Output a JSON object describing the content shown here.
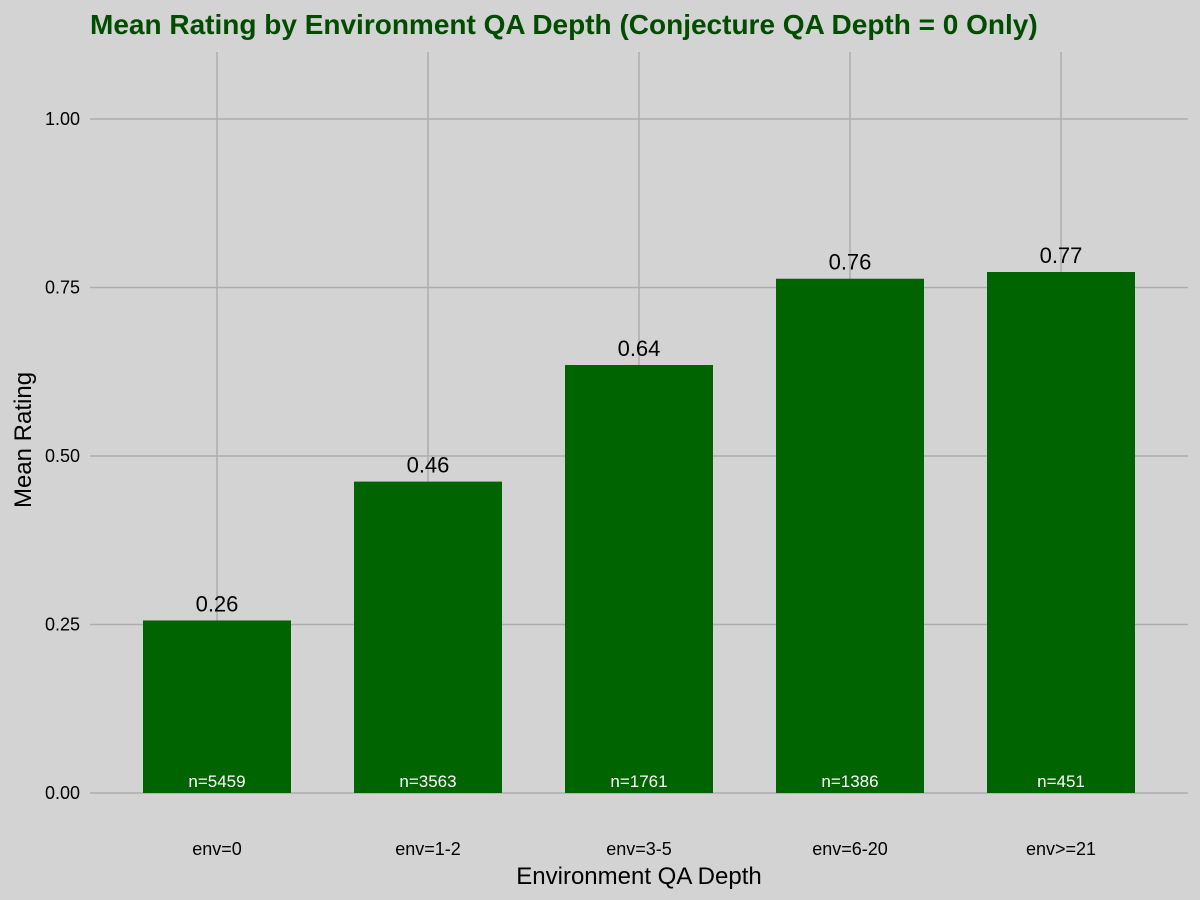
{
  "chart_data": {
    "type": "bar",
    "title": "Mean Rating by Environment QA Depth (Conjecture QA Depth = 0 Only)",
    "xlabel": "Environment QA Depth",
    "ylabel": "Mean Rating",
    "categories": [
      "env=0",
      "env=1-2",
      "env=3-5",
      "env=6-20",
      "env>=21"
    ],
    "values": [
      0.256,
      0.462,
      0.635,
      0.763,
      0.773
    ],
    "value_labels": [
      "0.26",
      "0.46",
      "0.64",
      "0.76",
      "0.77"
    ],
    "counts": [
      "n=5459",
      "n=3563",
      "n=1761",
      "n=1386",
      "n=451"
    ],
    "ylim": [
      0,
      1.1
    ],
    "yticks": [
      0,
      0.25,
      0.5,
      0.75,
      1.0
    ],
    "ytick_labels": [
      "0.00",
      "0.25",
      "0.50",
      "0.75",
      "1.00"
    ],
    "grid": true,
    "legend": "none"
  },
  "colors": {
    "background": "#d3d3d3",
    "bar": "#006400",
    "title": "#004d00",
    "grid": "#adadad",
    "count_text": "#ffffff"
  }
}
